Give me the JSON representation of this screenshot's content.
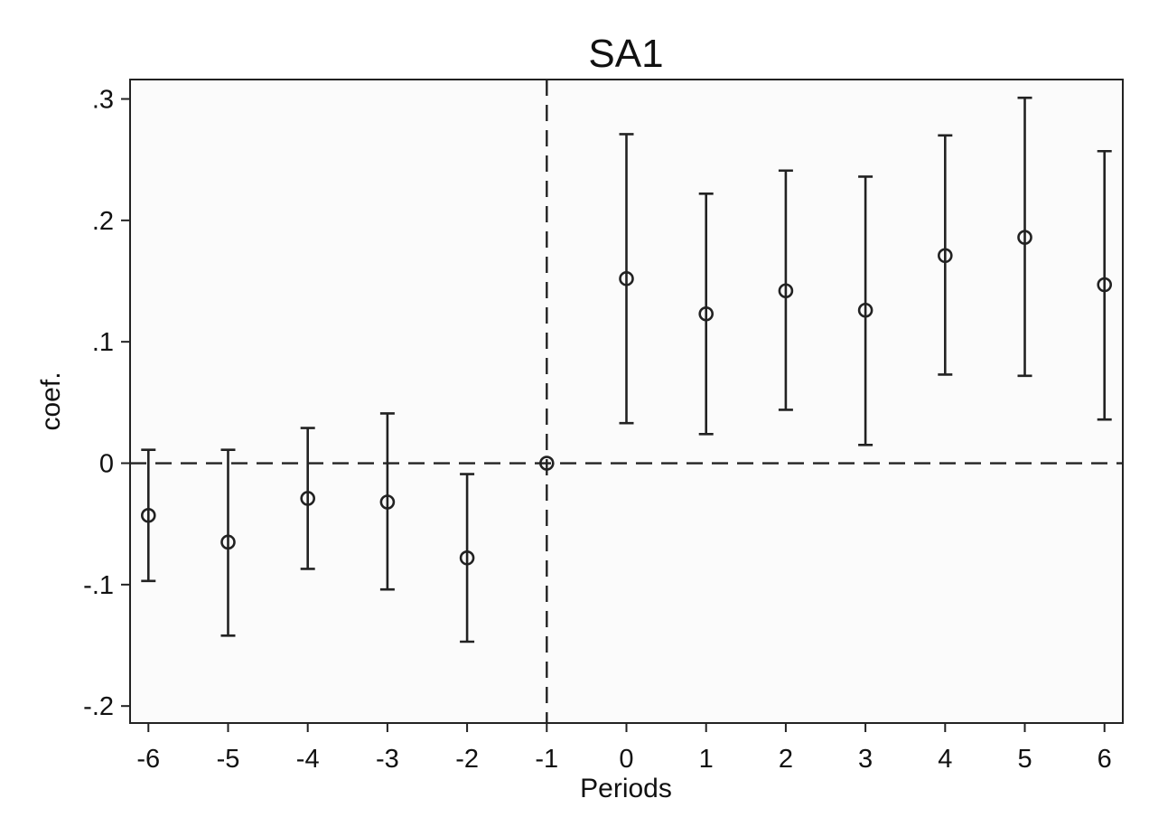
{
  "chart_data": {
    "type": "scatter",
    "title": "SA1",
    "xlabel": "Periods",
    "ylabel": "coef.",
    "x": [
      -6,
      -5,
      -4,
      -3,
      -2,
      -1,
      0,
      1,
      2,
      3,
      4,
      5,
      6
    ],
    "series": [
      {
        "estimate": [
          -0.043,
          -0.065,
          -0.029,
          -0.032,
          -0.078,
          0.0,
          0.152,
          0.123,
          0.142,
          0.126,
          0.171,
          0.186,
          0.147
        ],
        "ci_lower": [
          -0.097,
          -0.142,
          -0.087,
          -0.104,
          -0.147,
          0.0,
          0.033,
          0.024,
          0.044,
          0.015,
          0.073,
          0.072,
          0.036
        ],
        "ci_upper": [
          0.011,
          0.011,
          0.029,
          0.041,
          -0.009,
          0.0,
          0.271,
          0.222,
          0.241,
          0.236,
          0.27,
          0.301,
          0.257
        ]
      }
    ],
    "x_ticks": [
      "-6",
      "-5",
      "-4",
      "-3",
      "-2",
      "-1",
      "0",
      "1",
      "2",
      "3",
      "4",
      "5",
      "6"
    ],
    "y_ticks": [
      {
        "value": -0.2,
        "label": "-.2"
      },
      {
        "value": -0.1,
        "label": "-.1"
      },
      {
        "value": 0.0,
        "label": "0"
      },
      {
        "value": 0.1,
        "label": ".1"
      },
      {
        "value": 0.2,
        "label": ".2"
      },
      {
        "value": 0.3,
        "label": ".3"
      }
    ],
    "xlim": [
      -6.23,
      6.23
    ],
    "ylim": [
      -0.214,
      0.316
    ],
    "reference_lines": {
      "x": -1,
      "y": 0
    },
    "grid": false,
    "legend": "none",
    "colors": {
      "marker": "#222222",
      "plot_bg": "#fbfbfb",
      "axis": "#222222",
      "reference": "#222222"
    }
  }
}
